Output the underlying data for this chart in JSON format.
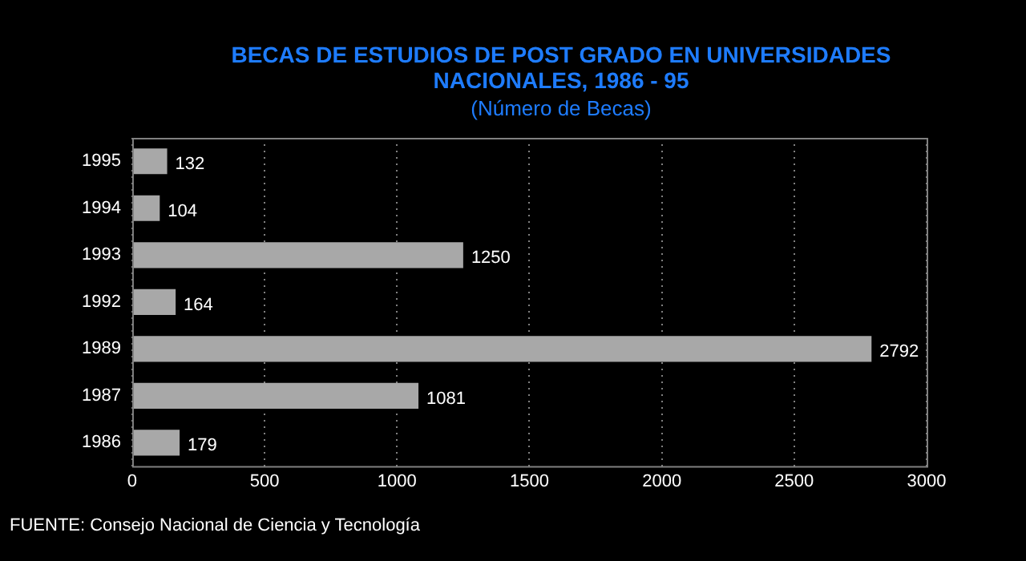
{
  "chart_data": {
    "type": "bar",
    "orientation": "horizontal",
    "title": "BECAS DE ESTUDIOS DE POST GRADO EN UNIVERSIDADES NACIONALES, 1986 - 95",
    "subtitle": "(Número de Becas)",
    "categories": [
      "1995",
      "1994",
      "1993",
      "1992",
      "1989",
      "1987",
      "1986"
    ],
    "values": [
      132,
      104,
      1250,
      164,
      2792,
      1081,
      179
    ],
    "color": "#a8a8a8",
    "xlim": [
      0,
      3000
    ],
    "xticks": [
      0,
      500,
      1000,
      1500,
      2000,
      2500,
      3000
    ],
    "grid": "x",
    "legend": false,
    "data_labels": true,
    "annotations": [
      "FUENTE: Consejo Nacional de Ciencia y Tecnología"
    ]
  }
}
